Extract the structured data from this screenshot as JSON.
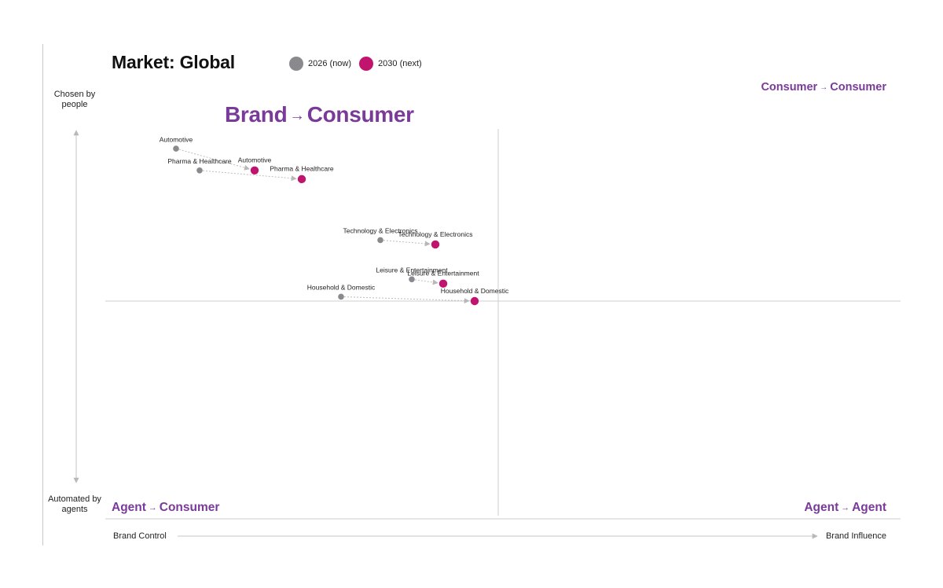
{
  "title": "Market: Global",
  "legend": [
    {
      "label": "2026 (now)",
      "color": "#8a8a8e"
    },
    {
      "label": "2030 (next)",
      "color": "#c0146e"
    }
  ],
  "axes": {
    "y_top": "Chosen by people",
    "y_bottom": "Automated by agents",
    "x_left": "Brand Control",
    "x_right": "Brand Influence"
  },
  "quadrants": {
    "top_left": {
      "from": "Brand",
      "to": "Consumer"
    },
    "top_right": {
      "from": "Consumer",
      "to": "Consumer"
    },
    "bottom_left": {
      "from": "Agent",
      "to": "Consumer"
    },
    "bottom_right": {
      "from": "Agent",
      "to": "Agent"
    }
  },
  "chart_data": {
    "type": "scatter",
    "x_label_left": "Brand Control",
    "x_label_right": "Brand Influence",
    "y_label_top": "Chosen by people",
    "y_label_bottom": "Automated by agents",
    "xlim": [
      0,
      100
    ],
    "ylim": [
      0,
      100
    ],
    "series": [
      {
        "name": "2026 (now)",
        "color": "#8a8a8e",
        "points": [
          {
            "label": "Automotive",
            "x": 9,
            "y": 85
          },
          {
            "label": "Pharma & Healthcare",
            "x": 12,
            "y": 80
          },
          {
            "label": "Technology & Electronics",
            "x": 35,
            "y": 64
          },
          {
            "label": "Leisure & Entertainment",
            "x": 39,
            "y": 55
          },
          {
            "label": "Household & Domestic",
            "x": 30,
            "y": 51
          }
        ]
      },
      {
        "name": "2030 (next)",
        "color": "#c0146e",
        "points": [
          {
            "label": "Automotive",
            "x": 19,
            "y": 80
          },
          {
            "label": "Pharma & Healthcare",
            "x": 25,
            "y": 78
          },
          {
            "label": "Technology & Electronics",
            "x": 42,
            "y": 63
          },
          {
            "label": "Leisure & Entertainment",
            "x": 43,
            "y": 54
          },
          {
            "label": "Household & Domestic",
            "x": 47,
            "y": 50
          }
        ]
      }
    ]
  }
}
